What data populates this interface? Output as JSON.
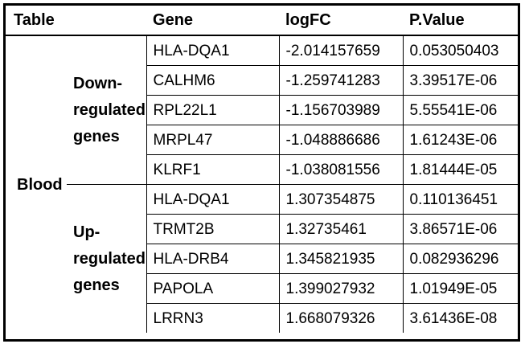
{
  "header": {
    "table": "Table",
    "gene": "Gene",
    "logfc": "logFC",
    "pvalue": "P.Value"
  },
  "tissue": "Blood",
  "groups": [
    {
      "label_lines": [
        "Down-",
        "regulated",
        "genes"
      ],
      "rows": [
        {
          "gene": "HLA-DQA1",
          "logfc": "-2.014157659",
          "pvalue": "0.053050403"
        },
        {
          "gene": "CALHM6",
          "logfc": "-1.259741283",
          "pvalue": "3.39517E-06"
        },
        {
          "gene": "RPL22L1",
          "logfc": "-1.156703989",
          "pvalue": "5.55541E-06"
        },
        {
          "gene": "MRPL47",
          "logfc": "-1.048886686",
          "pvalue": "1.61243E-06"
        },
        {
          "gene": "KLRF1",
          "logfc": "-1.038081556",
          "pvalue": "1.81444E-05"
        }
      ]
    },
    {
      "label_lines": [
        "Up-",
        "regulated",
        "genes"
      ],
      "rows": [
        {
          "gene": "HLA-DQA1",
          "logfc": "1.307354875",
          "pvalue": "0.110136451"
        },
        {
          "gene": "TRMT2B",
          "logfc": "1.32735461",
          "pvalue": "3.86571E-06"
        },
        {
          "gene": "HLA-DRB4",
          "logfc": "1.345821935",
          "pvalue": "0.082936296"
        },
        {
          "gene": "PAPOLA",
          "logfc": "1.399027932",
          "pvalue": "1.01949E-05"
        },
        {
          "gene": "LRRN3",
          "logfc": "1.668079326",
          "pvalue": "3.61436E-08"
        }
      ]
    }
  ]
}
